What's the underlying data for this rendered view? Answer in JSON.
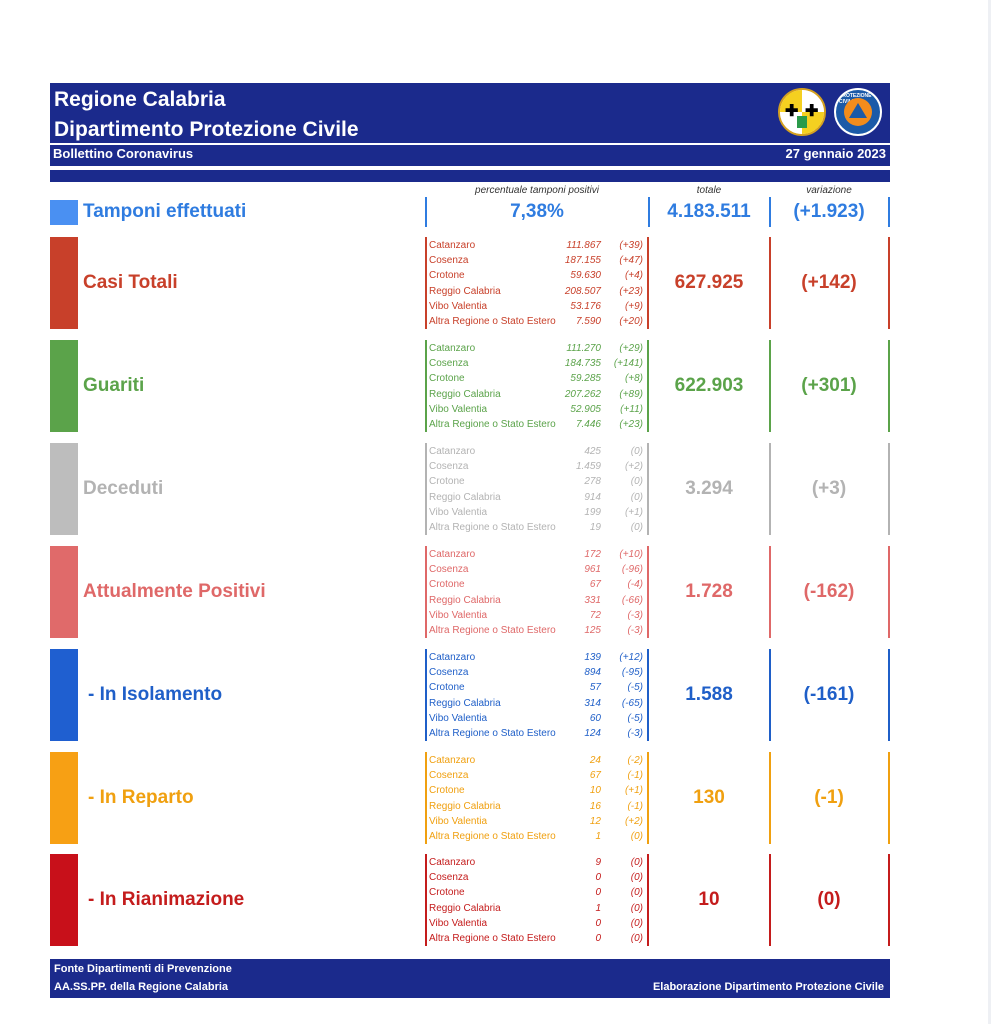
{
  "header": {
    "title1": "Regione Calabria",
    "title2": "Dipartimento Protezione Civile",
    "subtitle": "Bollettino Coronavirus",
    "date": "27 gennaio 2023"
  },
  "columns": {
    "pct": "percentuale tamponi positivi",
    "total": "totale",
    "variation": "variazione"
  },
  "tamponi": {
    "label": "Tamponi effettuati",
    "pct": "7,38%",
    "total": "4.183.511",
    "variation": "(+1.923)",
    "color": "#2f7ce0"
  },
  "sections": [
    {
      "key": "casi",
      "label": "Casi Totali",
      "color": "#c8402a",
      "bar_color": "#c8402a",
      "total": "627.925",
      "variation": "(+142)",
      "rows": [
        {
          "name": "Catanzaro",
          "value": "111.867",
          "delta": "(+39)"
        },
        {
          "name": "Cosenza",
          "value": "187.155",
          "delta": "(+47)"
        },
        {
          "name": "Crotone",
          "value": "59.630",
          "delta": "(+4)"
        },
        {
          "name": "Reggio Calabria",
          "value": "208.507",
          "delta": "(+23)"
        },
        {
          "name": "Vibo Valentia",
          "value": "53.176",
          "delta": "(+9)"
        },
        {
          "name": "Altra Regione o Stato Estero",
          "value": "7.590",
          "delta": "(+20)"
        }
      ]
    },
    {
      "key": "guariti",
      "label": "Guariti",
      "color": "#5ba34a",
      "bar_color": "#5ba34a",
      "total": "622.903",
      "variation": "(+301)",
      "rows": [
        {
          "name": "Catanzaro",
          "value": "111.270",
          "delta": "(+29)"
        },
        {
          "name": "Cosenza",
          "value": "184.735",
          "delta": "(+141)"
        },
        {
          "name": "Crotone",
          "value": "59.285",
          "delta": "(+8)"
        },
        {
          "name": "Reggio Calabria",
          "value": "207.262",
          "delta": "(+89)"
        },
        {
          "name": "Vibo Valentia",
          "value": "52.905",
          "delta": "(+11)"
        },
        {
          "name": "Altra Regione o Stato Estero",
          "value": "7.446",
          "delta": "(+23)"
        }
      ]
    },
    {
      "key": "deceduti",
      "label": "Deceduti",
      "color": "#b3b3b3",
      "bar_color": "#bdbdbd",
      "total": "3.294",
      "variation": "(+3)",
      "rows": [
        {
          "name": "Catanzaro",
          "value": "425",
          "delta": "(0)"
        },
        {
          "name": "Cosenza",
          "value": "1.459",
          "delta": "(+2)"
        },
        {
          "name": "Crotone",
          "value": "278",
          "delta": "(0)"
        },
        {
          "name": "Reggio Calabria",
          "value": "914",
          "delta": "(0)"
        },
        {
          "name": "Vibo Valentia",
          "value": "199",
          "delta": "(+1)"
        },
        {
          "name": "Altra Regione o Stato Estero",
          "value": "19",
          "delta": "(0)"
        }
      ]
    },
    {
      "key": "positivi",
      "label": "Attualmente Positivi",
      "color": "#df6868",
      "bar_color": "#e06a6a",
      "total": "1.728",
      "variation": "(-162)",
      "rows": [
        {
          "name": "Catanzaro",
          "value": "172",
          "delta": "(+10)"
        },
        {
          "name": "Cosenza",
          "value": "961",
          "delta": "(-96)"
        },
        {
          "name": "Crotone",
          "value": "67",
          "delta": "(-4)"
        },
        {
          "name": "Reggio Calabria",
          "value": "331",
          "delta": "(-66)"
        },
        {
          "name": "Vibo Valentia",
          "value": "72",
          "delta": "(-3)"
        },
        {
          "name": "Altra Regione o Stato Estero",
          "value": "125",
          "delta": "(-3)"
        }
      ]
    },
    {
      "key": "isolamento",
      "label": "- In Isolamento",
      "color": "#1f5fc8",
      "bar_color": "#1f5fd0",
      "total": "1.588",
      "variation": "(-161)",
      "rows": [
        {
          "name": "Catanzaro",
          "value": "139",
          "delta": "(+12)"
        },
        {
          "name": "Cosenza",
          "value": "894",
          "delta": "(-95)"
        },
        {
          "name": "Crotone",
          "value": "57",
          "delta": "(-5)"
        },
        {
          "name": "Reggio Calabria",
          "value": "314",
          "delta": "(-65)"
        },
        {
          "name": "Vibo Valentia",
          "value": "60",
          "delta": "(-5)"
        },
        {
          "name": "Altra Regione o Stato Estero",
          "value": "124",
          "delta": "(-3)"
        }
      ]
    },
    {
      "key": "reparto",
      "label": "- In Reparto",
      "color": "#f0a010",
      "bar_color": "#f7a014",
      "total": "130",
      "variation": "(-1)",
      "rows": [
        {
          "name": "Catanzaro",
          "value": "24",
          "delta": "(-2)"
        },
        {
          "name": "Cosenza",
          "value": "67",
          "delta": "(-1)"
        },
        {
          "name": "Crotone",
          "value": "10",
          "delta": "(+1)"
        },
        {
          "name": "Reggio Calabria",
          "value": "16",
          "delta": "(-1)"
        },
        {
          "name": "Vibo Valentia",
          "value": "12",
          "delta": "(+2)"
        },
        {
          "name": "Altra Regione o Stato Estero",
          "value": "1",
          "delta": "(0)"
        }
      ]
    },
    {
      "key": "rianimazione",
      "label": "- In Rianimazione",
      "color": "#c41c1c",
      "bar_color": "#c8101a",
      "total": "10",
      "variation": "(0)",
      "rows": [
        {
          "name": "Catanzaro",
          "value": "9",
          "delta": "(0)"
        },
        {
          "name": "Cosenza",
          "value": "0",
          "delta": "(0)"
        },
        {
          "name": "Crotone",
          "value": "0",
          "delta": "(0)"
        },
        {
          "name": "Reggio Calabria",
          "value": "1",
          "delta": "(0)"
        },
        {
          "name": "Vibo Valentia",
          "value": "0",
          "delta": "(0)"
        },
        {
          "name": "Altra Regione o Stato Estero",
          "value": "0",
          "delta": "(0)"
        }
      ]
    }
  ],
  "footer": {
    "line1": "Fonte Dipartimenti di Prevenzione",
    "line2": "AA.SS.PP.  della Regione Calabria",
    "right": "Elaborazione Dipartimento Protezione Civile"
  }
}
